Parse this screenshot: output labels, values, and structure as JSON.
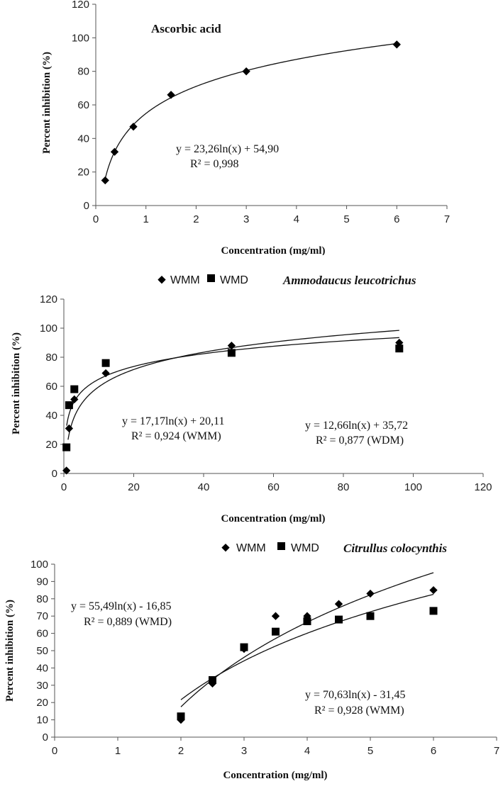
{
  "chart_data": [
    {
      "type": "scatter",
      "title": "Ascorbic acid",
      "xlabel": "Concentration (mg/ml)",
      "ylabel": "Percent inhibition  (%)",
      "xlim": [
        0,
        7
      ],
      "ylim": [
        0,
        120
      ],
      "xticks": [
        0,
        1,
        2,
        3,
        4,
        5,
        6,
        7
      ],
      "yticks": [
        0,
        20,
        40,
        60,
        80,
        100,
        120
      ],
      "series": [
        {
          "marker": "diamond",
          "x": [
            0.1875,
            0.375,
            0.75,
            1.5,
            3,
            6
          ],
          "y": [
            15,
            32,
            47,
            66,
            80,
            96
          ]
        }
      ],
      "trendlines": [
        {
          "a": 23.26,
          "b": 54.9,
          "x_range": [
            0.19,
            6
          ],
          "equation": "y = 23,26ln(x) + 54,90",
          "r2": "R² = 0,998"
        }
      ],
      "legend": []
    },
    {
      "type": "scatter",
      "title": "Ammodaucus leucotrichus",
      "xlabel": "Concentration (mg/ml)",
      "ylabel": "Percent inhibition (%)",
      "xlim": [
        0,
        120
      ],
      "ylim": [
        0,
        120
      ],
      "xticks": [
        0,
        20,
        40,
        60,
        80,
        100,
        120
      ],
      "yticks": [
        0,
        20,
        40,
        60,
        80,
        100,
        120
      ],
      "series": [
        {
          "name": "WMM",
          "marker": "diamond",
          "x": [
            0.75,
            1.5,
            3,
            12,
            48,
            96
          ],
          "y": [
            2,
            31,
            51,
            69,
            88,
            90
          ]
        },
        {
          "name": "WMD",
          "marker": "square",
          "x": [
            0.75,
            1.5,
            3,
            12,
            48,
            96
          ],
          "y": [
            18,
            47,
            58,
            76,
            83,
            86
          ]
        }
      ],
      "trendlines": [
        {
          "a": 17.17,
          "b": 20.11,
          "x_range": [
            1.2,
            96
          ],
          "equation": "y = 17,17ln(x) + 20,11",
          "r2": "R² = 0,924 (WMM)"
        },
        {
          "a": 12.66,
          "b": 35.72,
          "x_range": [
            0.8,
            96
          ],
          "equation": "y = 12,66ln(x) + 35,72",
          "r2": "R² = 0,877 (WDM)"
        }
      ],
      "legend": [
        "WMM",
        "WMD"
      ],
      "legend_position": "top"
    },
    {
      "type": "scatter",
      "title": "Citrullus colocynthis",
      "xlabel": "Concentration  (mg/ml)",
      "ylabel": "Percent inhibition (%)",
      "xlim": [
        0,
        7
      ],
      "ylim": [
        0,
        100
      ],
      "xticks": [
        0,
        1,
        2,
        3,
        4,
        5,
        6,
        7
      ],
      "yticks": [
        0,
        10,
        20,
        30,
        40,
        50,
        60,
        70,
        80,
        90,
        100
      ],
      "series": [
        {
          "name": "WMM",
          "marker": "diamond",
          "x": [
            2,
            2.5,
            3,
            3.5,
            4,
            4.5,
            5,
            6
          ],
          "y": [
            10,
            31,
            51,
            70,
            70,
            77,
            83,
            85
          ]
        },
        {
          "name": "WMD",
          "marker": "square",
          "x": [
            2,
            2.5,
            3,
            3.5,
            4,
            4.5,
            5,
            6
          ],
          "y": [
            12,
            33,
            52,
            61,
            67,
            68,
            70,
            73
          ]
        }
      ],
      "trendlines": [
        {
          "a": 70.63,
          "b": -31.45,
          "x_range": [
            2,
            6
          ],
          "equation": "y = 70,63ln(x) - 31,45",
          "r2": "R² = 0,928 (WMM)"
        },
        {
          "a": 55.49,
          "b": -16.85,
          "x_range": [
            2,
            6
          ],
          "equation": "y = 55,49ln(x) - 16,85",
          "r2": "R² = 0,889 (WMD)"
        }
      ],
      "legend": [
        "WMM",
        "WMD"
      ],
      "legend_position": "top"
    }
  ]
}
